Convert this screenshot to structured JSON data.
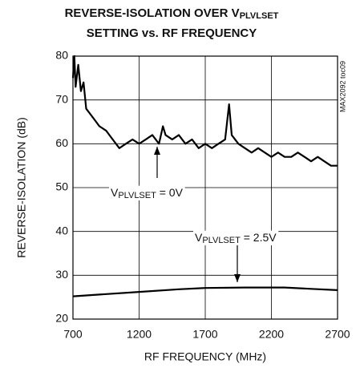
{
  "chart_data": {
    "type": "line",
    "title": [
      "REVERSE-ISOLATION OVER V",
      "PLVLSET"
    ],
    "subtitle": "SETTING vs. RF FREQUENCY",
    "x_label": "RF FREQUENCY (MHz)",
    "y_label": "REVERSE-ISOLATION (dB)",
    "side_label": "MAX2092 toc09",
    "xlim": [
      700,
      2700
    ],
    "ylim": [
      20,
      80
    ],
    "xticks": [
      700,
      1200,
      1700,
      2200,
      2700
    ],
    "yticks": [
      20,
      30,
      40,
      50,
      60,
      70,
      80
    ],
    "grid": true,
    "series": [
      {
        "color": "#000000",
        "x": [
          700,
          710,
          720,
          740,
          760,
          780,
          800,
          850,
          900,
          950,
          1000,
          1050,
          1100,
          1150,
          1200,
          1250,
          1300,
          1350,
          1380,
          1400,
          1450,
          1500,
          1550,
          1600,
          1650,
          1700,
          1750,
          1800,
          1850,
          1880,
          1900,
          1950,
          2000,
          2050,
          2100,
          2150,
          2200,
          2250,
          2300,
          2350,
          2400,
          2450,
          2500,
          2550,
          2600,
          2650,
          2700
        ],
        "values": [
          75,
          80,
          73,
          78,
          72,
          74,
          68,
          66,
          64,
          63,
          61,
          59,
          60,
          61,
          60,
          61,
          62,
          60,
          64,
          62,
          61,
          62,
          60,
          61,
          59,
          60,
          59,
          60,
          61,
          69,
          62,
          60,
          59,
          58,
          59,
          58,
          57,
          58,
          57,
          57,
          58,
          57,
          56,
          57,
          56,
          55,
          55
        ]
      },
      {
        "color": "#000000",
        "x": [
          700,
          900,
          1200,
          1500,
          1700,
          2000,
          2300,
          2500,
          2700
        ],
        "values": [
          25.2,
          25.6,
          26.2,
          26.8,
          27.1,
          27.2,
          27.2,
          26.9,
          26.6
        ]
      }
    ],
    "annotations": [
      {
        "parts": [
          "V",
          "PLVLSET",
          " = 0V"
        ]
      },
      {
        "parts": [
          "V",
          "PLVLSET",
          " = 2.5V"
        ]
      }
    ]
  }
}
